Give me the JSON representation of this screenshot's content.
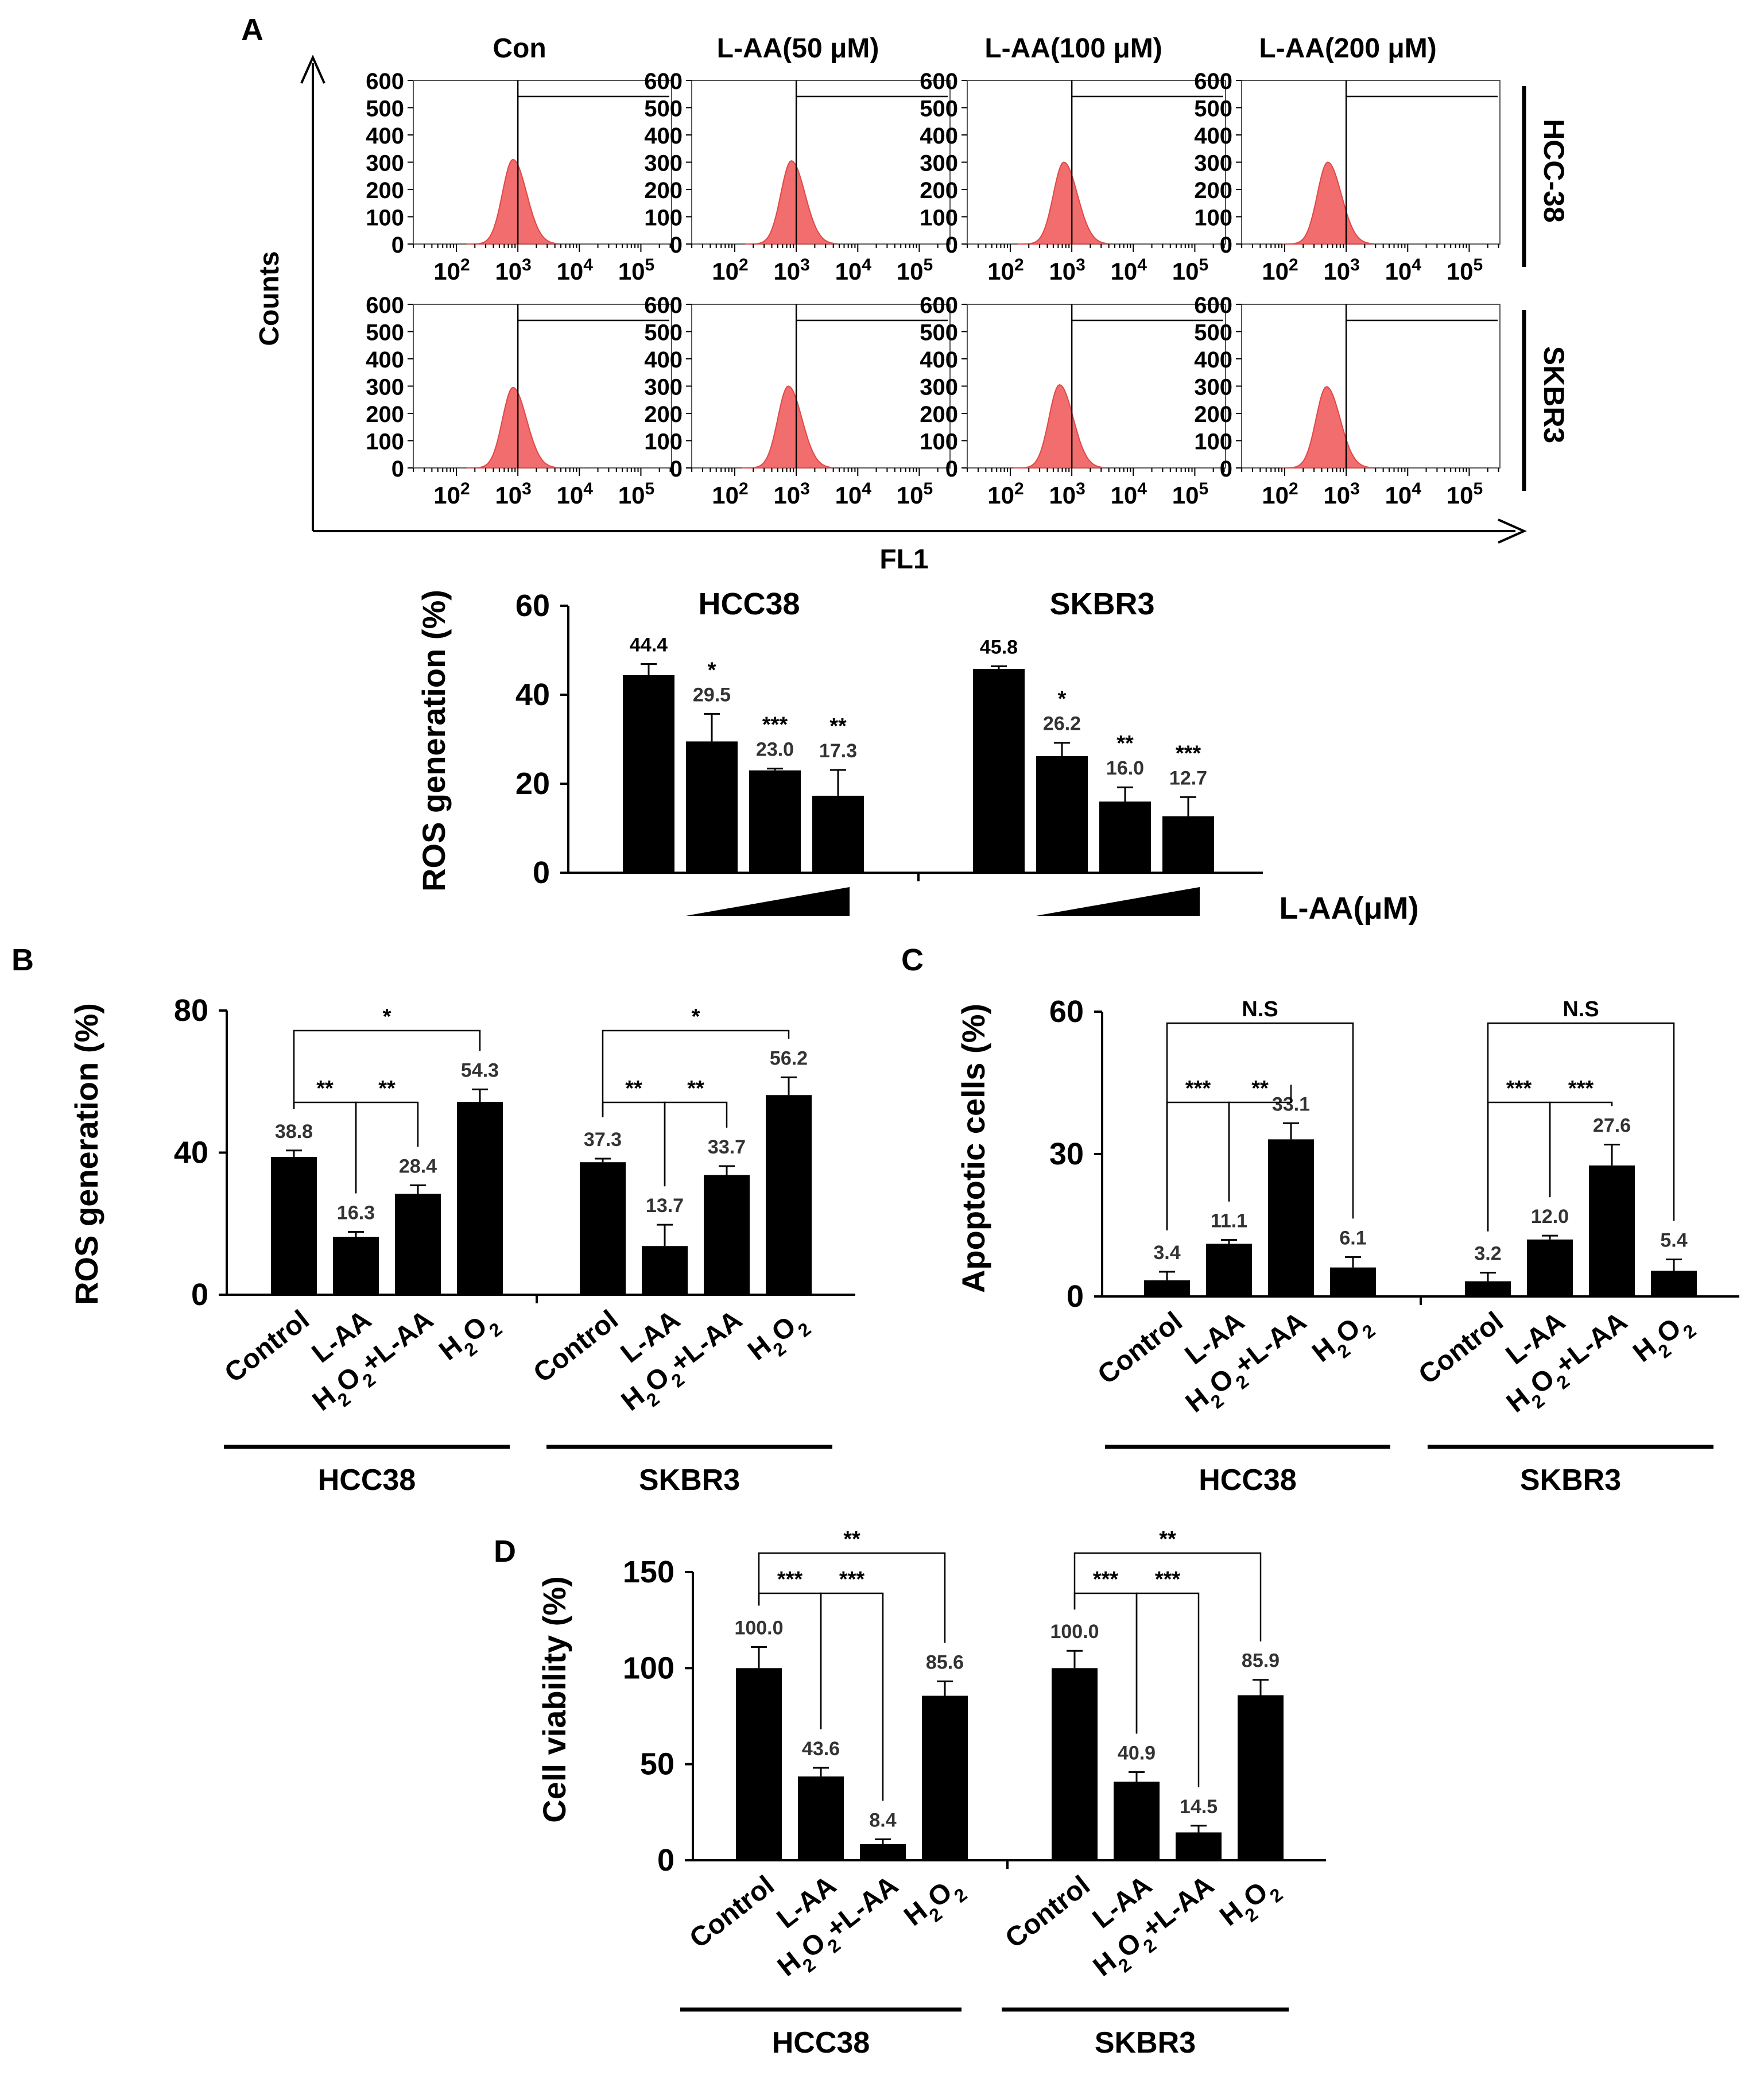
{
  "panel_labels": {
    "a": "A",
    "b": "B",
    "c": "C",
    "d": "D"
  },
  "flow": {
    "columns": [
      "Con",
      "L-AA(50 μM)",
      "L-AA(100 μM)",
      "L-AA(200 μM)"
    ],
    "rows": [
      "HCC-38",
      "SKBR3"
    ],
    "y_ticks": [
      "600",
      "500",
      "400",
      "300",
      "200",
      "100",
      "0"
    ],
    "x_tick_base": "10",
    "x_tick_exps": [
      "2",
      "3",
      "4",
      "5"
    ],
    "y_axis_label": "Counts",
    "x_axis_label": "FL1",
    "histogram_color": "#f26d6d"
  },
  "chart_data": [
    {
      "id": "A-bar",
      "type": "bar",
      "ylabel": "ROS generation (%)",
      "xlabel": "L-AA(μM)",
      "ylim": [
        0,
        60
      ],
      "yticks": [
        "0",
        "20",
        "40",
        "60"
      ],
      "groups": [
        {
          "name": "HCC38",
          "values": [
            44.4,
            29.5,
            23.0,
            17.3
          ],
          "labels": [
            "44.4",
            "29.5",
            "23.0",
            "17.3"
          ],
          "errors": [
            2.5,
            6.2,
            0.4,
            5.8
          ],
          "sig": [
            "",
            "*",
            "***",
            "**"
          ]
        },
        {
          "name": "SKBR3",
          "values": [
            45.8,
            26.2,
            16.0,
            12.7
          ],
          "labels": [
            "45.8",
            "26.2",
            "16.0",
            "12.7"
          ],
          "errors": [
            0.6,
            3.0,
            3.2,
            4.3
          ],
          "sig": [
            "",
            "*",
            "**",
            "***"
          ]
        }
      ]
    },
    {
      "id": "B",
      "type": "bar",
      "ylabel": "ROS generation (%)",
      "ylim": [
        0,
        80
      ],
      "yticks": [
        "0",
        "40",
        "80"
      ],
      "categories": [
        "Control",
        "L-AA",
        "H2O2+L-AA",
        "H2O2"
      ],
      "groups": [
        {
          "name": "HCC38",
          "values": [
            38.8,
            16.3,
            28.4,
            54.3
          ],
          "labels": [
            "38.8",
            "16.3",
            "28.4",
            "54.3"
          ],
          "errors": [
            1.8,
            1.4,
            2.4,
            3.5
          ],
          "brackets": [
            {
              "from": 0,
              "to": 1,
              "label": "**"
            },
            {
              "from": 1,
              "to": 2,
              "label": "**"
            },
            {
              "from": 0,
              "to": 3,
              "label": "*"
            }
          ]
        },
        {
          "name": "SKBR3",
          "values": [
            37.3,
            13.7,
            33.7,
            56.2
          ],
          "labels": [
            "37.3",
            "13.7",
            "33.7",
            "56.2"
          ],
          "errors": [
            1.0,
            6.0,
            2.5,
            5.0
          ],
          "brackets": [
            {
              "from": 0,
              "to": 1,
              "label": "**"
            },
            {
              "from": 1,
              "to": 2,
              "label": "**"
            },
            {
              "from": 0,
              "to": 3,
              "label": "*"
            }
          ]
        }
      ]
    },
    {
      "id": "C",
      "type": "bar",
      "ylabel": "Apoptotic cells (%)",
      "ylim": [
        0,
        60
      ],
      "yticks": [
        "0",
        "30",
        "60"
      ],
      "categories": [
        "Control",
        "L-AA",
        "H2O2+L-AA",
        "H2O2"
      ],
      "groups": [
        {
          "name": "HCC38",
          "values": [
            3.4,
            11.1,
            33.1,
            6.1
          ],
          "labels": [
            "3.4",
            "11.1",
            "33.1",
            "6.1"
          ],
          "errors": [
            1.8,
            0.8,
            3.4,
            2.2
          ],
          "brackets": [
            {
              "from": 0,
              "to": 1,
              "label": "***"
            },
            {
              "from": 1,
              "to": 2,
              "label": "**"
            },
            {
              "from": 0,
              "to": 3,
              "label": "N.S"
            }
          ]
        },
        {
          "name": "SKBR3",
          "values": [
            3.2,
            12.0,
            27.6,
            5.4
          ],
          "labels": [
            "3.2",
            "12.0",
            "27.6",
            "5.4"
          ],
          "errors": [
            1.8,
            0.8,
            4.4,
            2.4
          ],
          "brackets": [
            {
              "from": 0,
              "to": 1,
              "label": "***"
            },
            {
              "from": 1,
              "to": 2,
              "label": "***"
            },
            {
              "from": 0,
              "to": 3,
              "label": "N.S"
            }
          ]
        }
      ]
    },
    {
      "id": "D",
      "type": "bar",
      "ylabel": "Cell viability (%)",
      "ylim": [
        0,
        150
      ],
      "yticks": [
        "0",
        "50",
        "100",
        "150"
      ],
      "categories": [
        "Control",
        "L-AA",
        "H2O2+L-AA",
        "H2O2"
      ],
      "groups": [
        {
          "name": "HCC38",
          "values": [
            100.0,
            43.6,
            8.4,
            85.6
          ],
          "labels": [
            "100.0",
            "43.6",
            "8.4",
            "85.6"
          ],
          "errors": [
            11.0,
            4.5,
            2.5,
            7.5
          ],
          "brackets": [
            {
              "from": 0,
              "to": 1,
              "label": "***"
            },
            {
              "from": 1,
              "to": 2,
              "label": "***"
            },
            {
              "from": 0,
              "to": 3,
              "label": "**"
            }
          ]
        },
        {
          "name": "SKBR3",
          "values": [
            100.0,
            40.9,
            14.5,
            85.9
          ],
          "labels": [
            "100.0",
            "40.9",
            "14.5",
            "85.9"
          ],
          "errors": [
            9.0,
            5.0,
            3.5,
            8.0
          ],
          "brackets": [
            {
              "from": 0,
              "to": 1,
              "label": "***"
            },
            {
              "from": 1,
              "to": 2,
              "label": "***"
            },
            {
              "from": 0,
              "to": 3,
              "label": "**"
            }
          ]
        }
      ]
    }
  ]
}
